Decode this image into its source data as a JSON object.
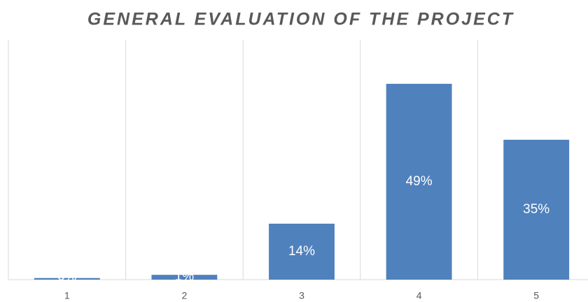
{
  "chart_data": {
    "type": "bar",
    "title": "GENERAL EVALUATION OF THE PROJECT",
    "categories": [
      "1",
      "2",
      "3",
      "4",
      "5"
    ],
    "values": [
      0.4,
      1.2,
      14,
      49,
      35
    ],
    "value_labels": [
      "0%",
      "1%",
      "14%",
      "49%",
      "35%"
    ],
    "color": "#4f81bd",
    "ylim": [
      0,
      60
    ]
  }
}
